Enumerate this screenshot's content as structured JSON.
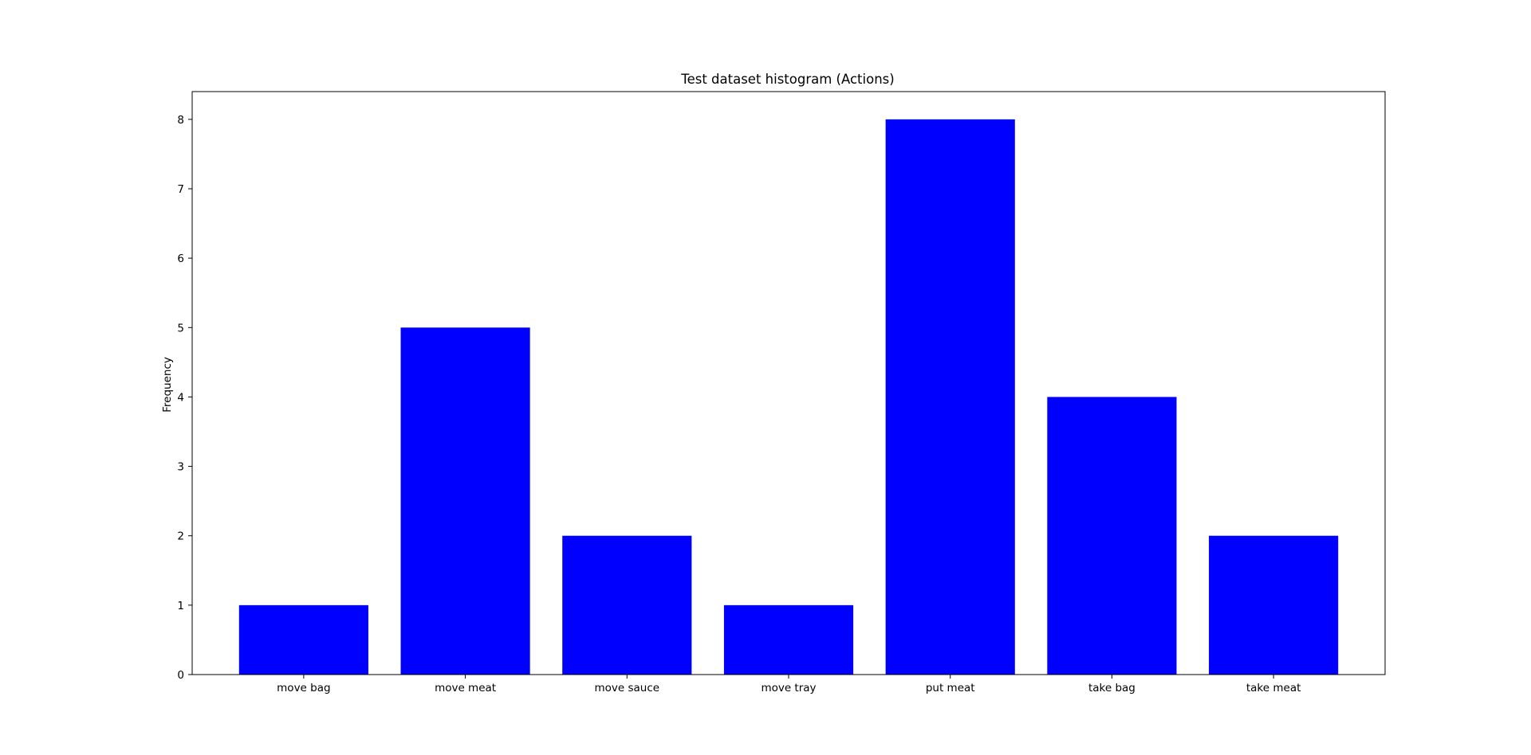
{
  "chart_data": {
    "type": "bar",
    "title": "Test dataset histogram (Actions)",
    "xlabel": "",
    "ylabel": "Frequency",
    "categories": [
      "move bag",
      "move meat",
      "move sauce",
      "move tray",
      "put meat",
      "take bag",
      "take meat"
    ],
    "values": [
      1,
      5,
      2,
      1,
      8,
      4,
      2
    ],
    "ylim": [
      0,
      8.4
    ],
    "yticks": [
      "0",
      "1",
      "2",
      "3",
      "4",
      "5",
      "6",
      "7",
      "8"
    ],
    "bar_color": "#0000ff",
    "grid": false,
    "legend": "none"
  }
}
